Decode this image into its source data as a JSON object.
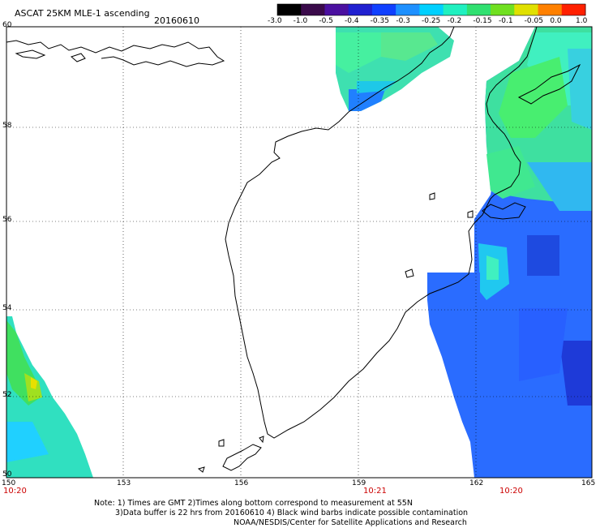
{
  "header": {
    "title": "ASCAT 25KM MLE-1 ascending",
    "date": "20160610"
  },
  "colorbar": {
    "labels": [
      "-3.0",
      "-1.0",
      "-0.5",
      "-0.4",
      "-0.35",
      "-0.3",
      "-0.25",
      "-0.2",
      "-0.15",
      "-0.1",
      "-0.05",
      "0.0",
      "1.0"
    ],
    "colors": [
      "#000000",
      "#3a0a4a",
      "#4b10a0",
      "#2020d0",
      "#1040ff",
      "#1e90ff",
      "#00d0ff",
      "#20f0c0",
      "#30e070",
      "#70e020",
      "#e0e000",
      "#ff8000",
      "#ff2000"
    ]
  },
  "axes": {
    "lat_labels": [
      "60",
      "58",
      "56",
      "54",
      "52",
      "50"
    ],
    "lon_labels": [
      "150",
      "153",
      "156",
      "159",
      "162",
      "165"
    ],
    "times": [
      "10:20",
      "10:21",
      "10:20"
    ]
  },
  "notes": {
    "line1": "Note: 1) Times are GMT 2)Times along bottom correspond to measurement at 55N",
    "line2": "3)Data buffer is 22 hrs from 20160610 4) Black wind barbs indicate possible contamination",
    "line3": "NOAA/NESDIS/Center for Satellite Applications and Research"
  }
}
